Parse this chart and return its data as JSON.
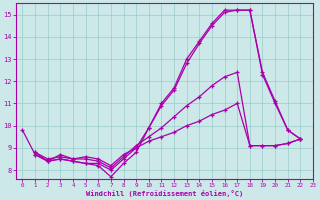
{
  "xlabel": "Windchill (Refroidissement éolien,°C)",
  "xlim": [
    -0.5,
    23
  ],
  "ylim": [
    7.6,
    15.5
  ],
  "xticks": [
    0,
    1,
    2,
    3,
    4,
    5,
    6,
    7,
    8,
    9,
    10,
    11,
    12,
    13,
    14,
    15,
    16,
    17,
    18,
    19,
    20,
    21,
    22,
    23
  ],
  "yticks": [
    8,
    9,
    10,
    11,
    12,
    13,
    14,
    15
  ],
  "bg_color": "#cce8e8",
  "line_color": "#aa00aa",
  "lines": [
    {
      "x": [
        0,
        1,
        2,
        3,
        4,
        5,
        6,
        7,
        8,
        9,
        10,
        11,
        12,
        13,
        14,
        15,
        16,
        17,
        18,
        19,
        20,
        21,
        22
      ],
      "y": [
        9.8,
        8.7,
        8.4,
        8.5,
        8.4,
        8.3,
        8.2,
        7.7,
        8.3,
        8.8,
        9.9,
        11.0,
        11.7,
        13.0,
        13.8,
        14.6,
        15.2,
        15.2,
        15.2,
        12.4,
        11.1,
        9.8,
        9.4
      ]
    },
    {
      "x": [
        1,
        2,
        3,
        4,
        5,
        6,
        7,
        8,
        9,
        10,
        11,
        12,
        13,
        14,
        15,
        16,
        17,
        18,
        19,
        20,
        21,
        22
      ],
      "y": [
        8.7,
        8.4,
        8.5,
        8.4,
        8.3,
        8.3,
        8.0,
        8.5,
        9.0,
        9.9,
        10.9,
        11.6,
        12.8,
        13.7,
        14.5,
        15.1,
        15.2,
        15.2,
        12.3,
        11.0,
        9.8,
        9.4
      ]
    },
    {
      "x": [
        1,
        2,
        3,
        4,
        5,
        6,
        7,
        8,
        9,
        10,
        11,
        12,
        13,
        14,
        15,
        16,
        17,
        18,
        19,
        20,
        21,
        22
      ],
      "y": [
        8.8,
        8.5,
        8.6,
        8.5,
        8.5,
        8.4,
        8.1,
        8.6,
        9.1,
        9.5,
        9.9,
        10.4,
        10.9,
        11.3,
        11.8,
        12.2,
        12.4,
        9.1,
        9.1,
        9.1,
        9.2,
        9.4
      ]
    },
    {
      "x": [
        1,
        2,
        3,
        4,
        5,
        6,
        7,
        8,
        9,
        10,
        11,
        12,
        13,
        14,
        15,
        16,
        17,
        18,
        19,
        20,
        21,
        22
      ],
      "y": [
        8.8,
        8.4,
        8.7,
        8.5,
        8.6,
        8.5,
        8.2,
        8.7,
        9.0,
        9.3,
        9.5,
        9.7,
        10.0,
        10.2,
        10.5,
        10.7,
        11.0,
        9.1,
        9.1,
        9.1,
        9.2,
        9.4
      ]
    }
  ]
}
